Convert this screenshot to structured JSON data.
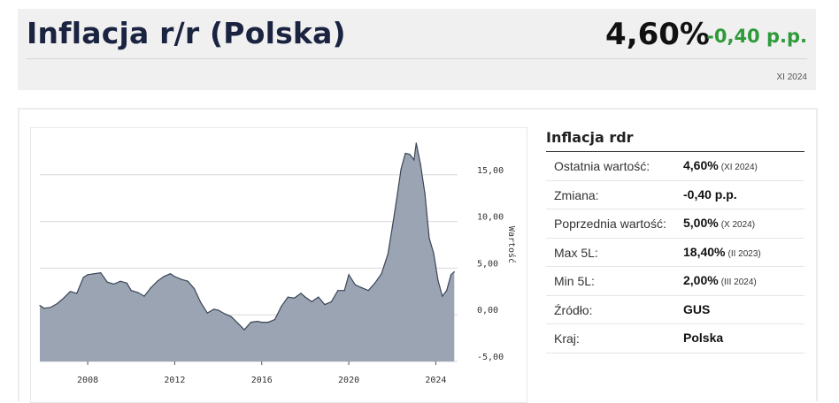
{
  "header": {
    "title": "Inflacja r/r (Polska)",
    "value": "4,60%",
    "change": "-0,40 p.p.",
    "period": "XI 2024",
    "change_color": "#2e9a3a"
  },
  "table": {
    "title": "Inflacja rdr",
    "rows": [
      {
        "label": "Ostatnia wartość:",
        "value": "4,60%",
        "date": "(XI 2024)"
      },
      {
        "label": "Zmiana:",
        "value": "-0,40 p.p.",
        "date": ""
      },
      {
        "label": "Poprzednia wartość:",
        "value": "5,00%",
        "date": "(X 2024)"
      },
      {
        "label": "Max 5L:",
        "value": "18,40%",
        "date": "(II 2023)"
      },
      {
        "label": "Min 5L:",
        "value": "2,00%",
        "date": "(III 2024)"
      },
      {
        "label": "Źródło:",
        "value": "GUS",
        "date": ""
      },
      {
        "label": "Kraj:",
        "value": "Polska",
        "date": ""
      }
    ]
  },
  "chart_data": {
    "type": "area",
    "ylabel": "Wartość",
    "ylim": [
      -5,
      20
    ],
    "xlim": [
      2005.8,
      2025.0
    ],
    "y_ticks": [
      "15,00",
      "10,00",
      "5,00",
      "0,00",
      "-5,00"
    ],
    "y_tick_values": [
      15,
      10,
      5,
      0,
      -5
    ],
    "x_ticks": [
      "2008",
      "2012",
      "2016",
      "2020",
      "2024"
    ],
    "x_tick_values": [
      2008,
      2012,
      2016,
      2020,
      2024
    ],
    "grid": true,
    "fill_color": "#9aa4b2",
    "line_color": "#3a4558",
    "x": [
      2005.8,
      2006.0,
      2006.3,
      2006.6,
      2006.9,
      2007.2,
      2007.5,
      2007.8,
      2008.0,
      2008.3,
      2008.6,
      2008.9,
      2009.2,
      2009.5,
      2009.8,
      2010.0,
      2010.3,
      2010.6,
      2010.9,
      2011.2,
      2011.5,
      2011.8,
      2012.0,
      2012.3,
      2012.6,
      2012.9,
      2013.2,
      2013.5,
      2013.8,
      2014.0,
      2014.3,
      2014.6,
      2014.9,
      2015.2,
      2015.5,
      2015.8,
      2016.0,
      2016.3,
      2016.6,
      2016.9,
      2017.2,
      2017.5,
      2017.8,
      2018.0,
      2018.3,
      2018.6,
      2018.9,
      2019.2,
      2019.5,
      2019.8,
      2020.0,
      2020.3,
      2020.6,
      2020.9,
      2021.2,
      2021.5,
      2021.8,
      2022.0,
      2022.2,
      2022.4,
      2022.6,
      2022.8,
      2023.0,
      2023.1,
      2023.3,
      2023.5,
      2023.7,
      2023.9,
      2024.1,
      2024.3,
      2024.5,
      2024.7,
      2024.85
    ],
    "y": [
      1.0,
      0.7,
      0.8,
      1.2,
      1.8,
      2.5,
      2.3,
      4.0,
      4.3,
      4.4,
      4.5,
      3.5,
      3.3,
      3.6,
      3.4,
      2.6,
      2.4,
      2.0,
      2.9,
      3.6,
      4.1,
      4.4,
      4.1,
      3.8,
      3.6,
      2.8,
      1.3,
      0.2,
      0.6,
      0.5,
      0.1,
      -0.2,
      -0.9,
      -1.6,
      -0.8,
      -0.7,
      -0.8,
      -0.8,
      -0.5,
      0.9,
      1.9,
      1.8,
      2.3,
      1.9,
      1.4,
      1.9,
      1.1,
      1.4,
      2.6,
      2.6,
      4.3,
      3.2,
      2.9,
      2.6,
      3.4,
      4.4,
      6.5,
      9.4,
      12.4,
      15.6,
      17.3,
      17.2,
      16.6,
      18.4,
      16.1,
      13.0,
      8.2,
      6.6,
      3.7,
      2.0,
      2.6,
      4.3,
      4.6
    ]
  }
}
